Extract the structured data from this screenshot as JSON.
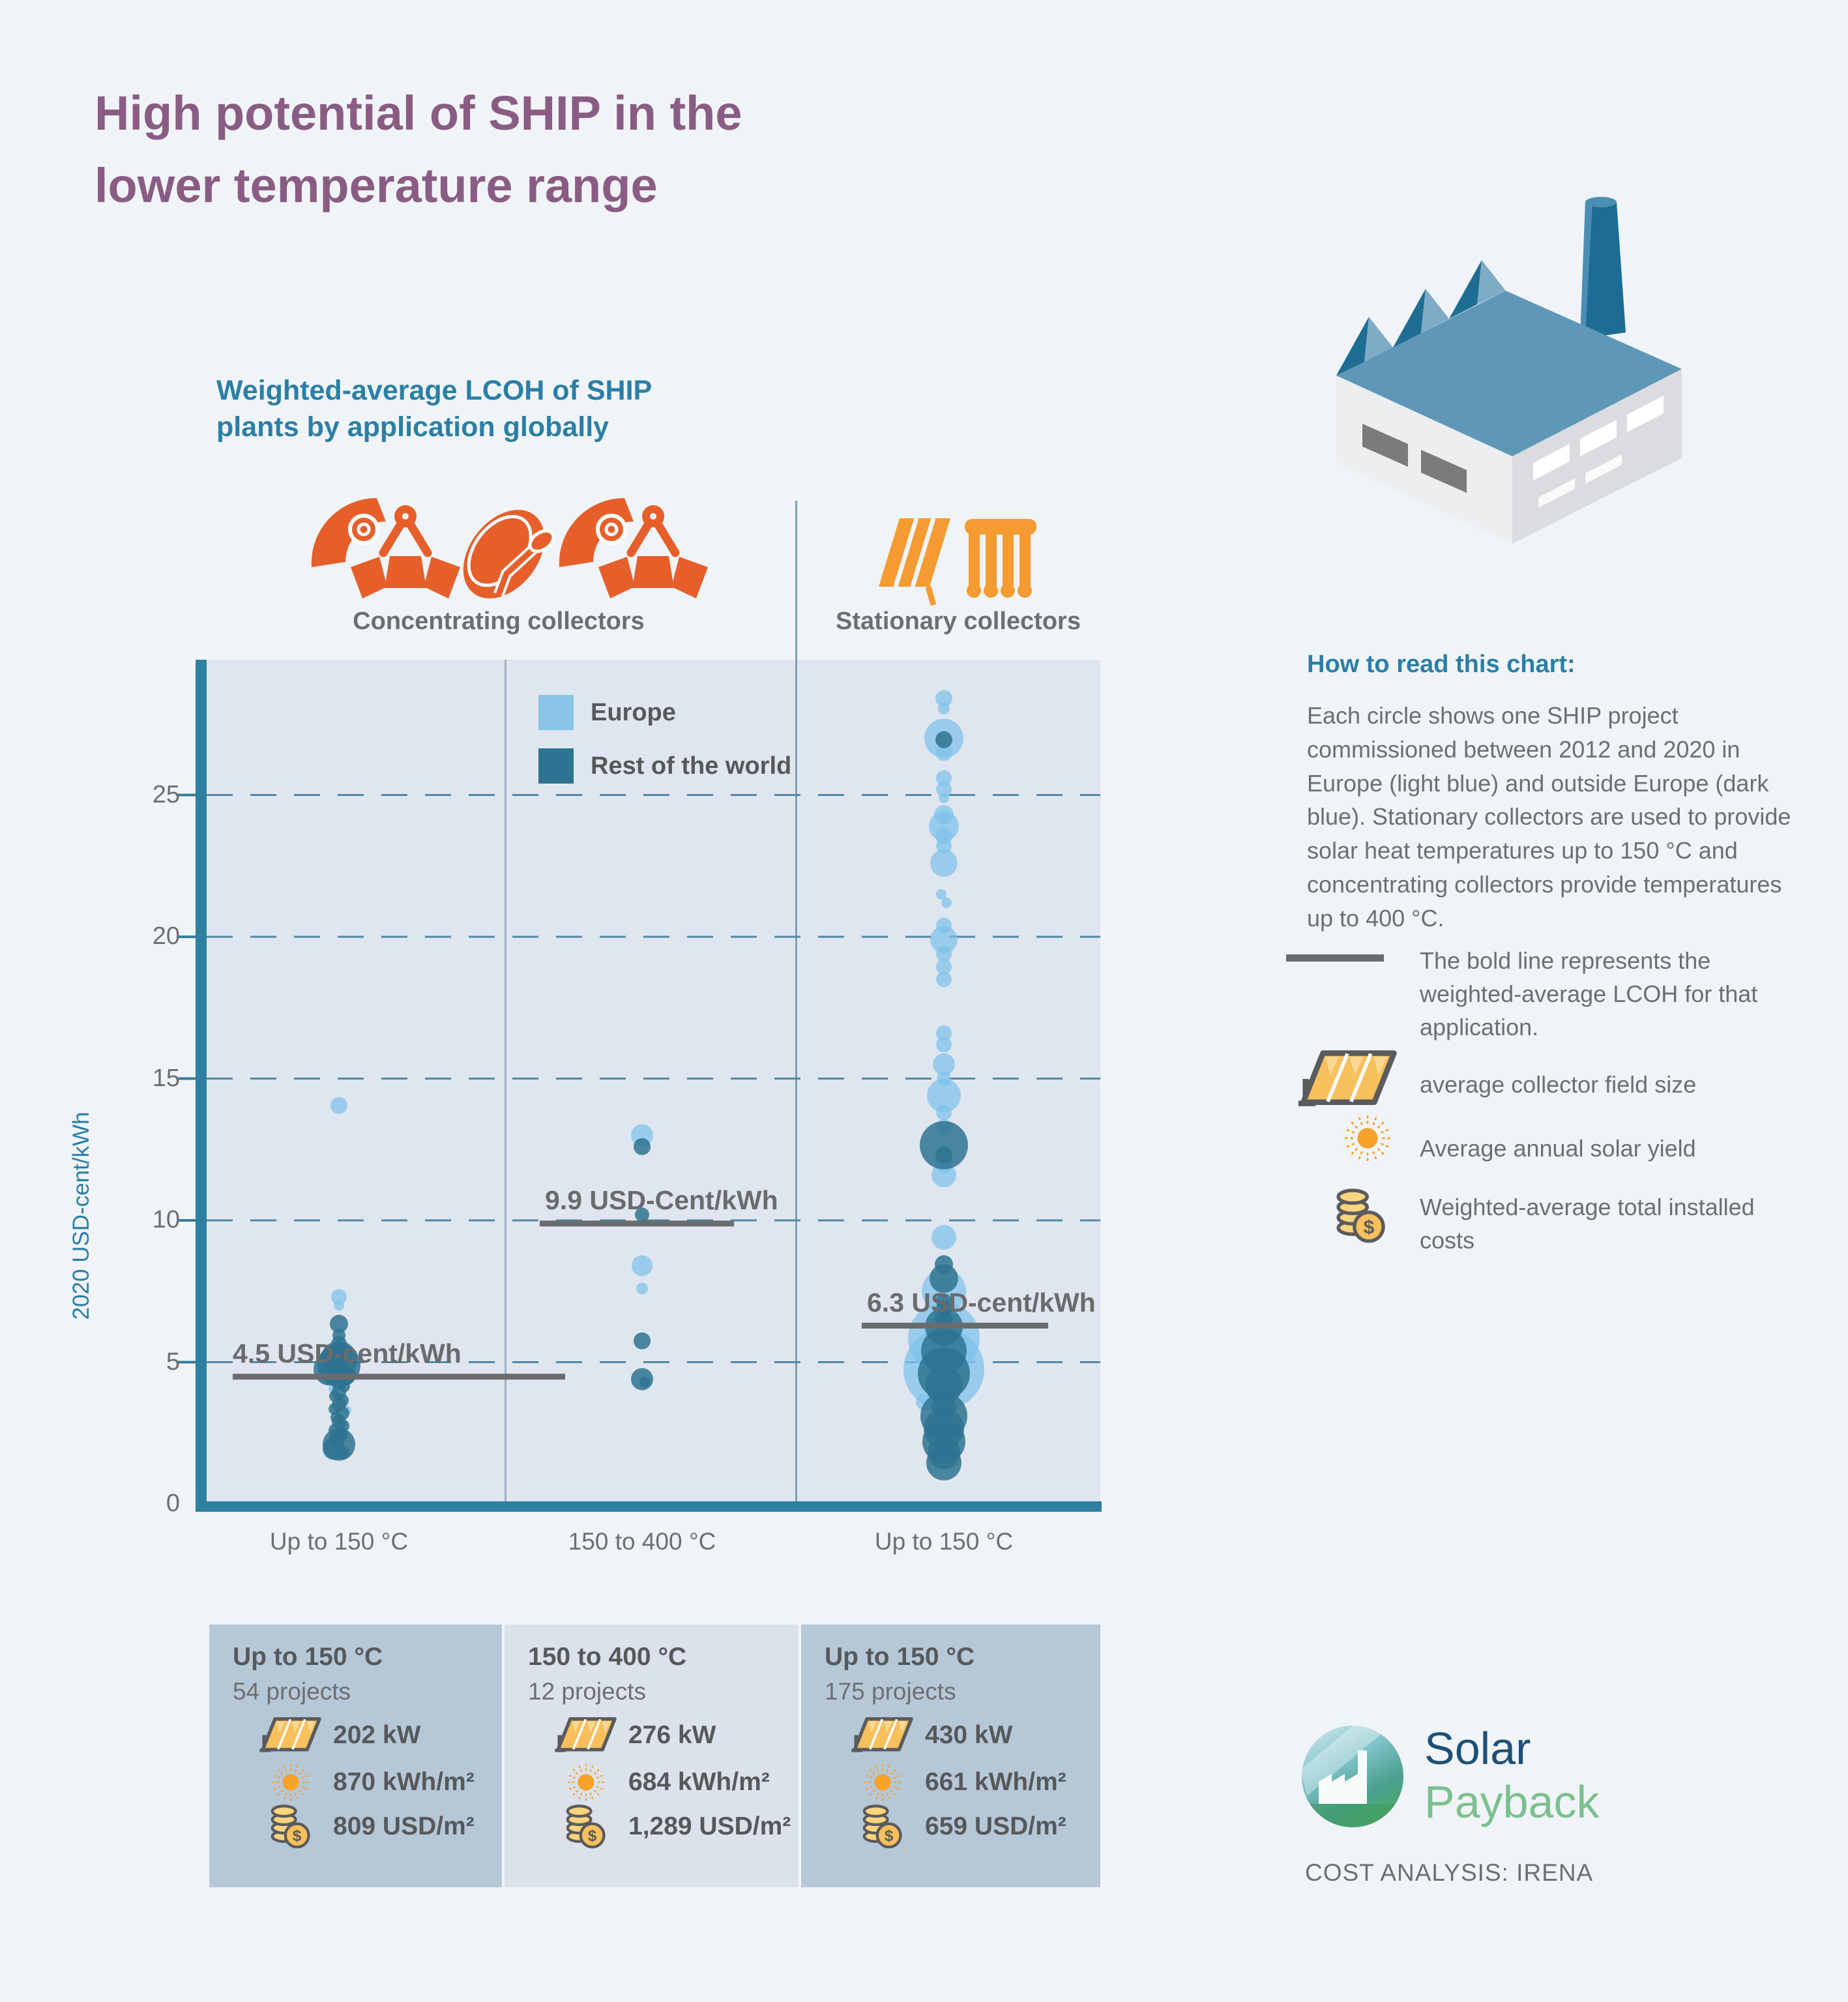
{
  "title": {
    "line1": "High potential of SHIP in the",
    "line2": "lower temperature range"
  },
  "chart": {
    "heading": {
      "line1": "Weighted-average LCOH of SHIP",
      "line2": "plants by application globally"
    },
    "groups": {
      "concentrating": "Concentrating collectors",
      "stationary": "Stationary collectors"
    },
    "y_axis_title": "2020 USD-cent/kWh"
  },
  "chart_data": {
    "type": "bubble",
    "ylabel": "2020 USD-cent/kWh",
    "ylim": [
      0,
      29.8
    ],
    "y_ticks": [
      0,
      5,
      10,
      15,
      20,
      25
    ],
    "grid": "dashed horizontal",
    "legend": [
      {
        "name": "Europe",
        "color": "#7dc2ea",
        "key": "eu"
      },
      {
        "name": "Rest of the world",
        "color": "#2e7391",
        "key": "row"
      }
    ],
    "columns": [
      {
        "x_label": "Up to 150 °C",
        "collector_group": "Concentrating collectors",
        "avg_value": 4.5,
        "avg_label": "4.5 USD-cent/kWh",
        "points": [
          [
            14.05,
            13,
            "eu"
          ],
          [
            7.3,
            12,
            "eu"
          ],
          [
            7.0,
            8,
            "eu"
          ],
          [
            6.35,
            14,
            "row"
          ],
          [
            5.95,
            10,
            "row"
          ],
          [
            5.65,
            12,
            "row"
          ],
          [
            5.35,
            15,
            "row"
          ],
          [
            5.1,
            28,
            "row"
          ],
          [
            4.9,
            33,
            "row"
          ],
          [
            4.75,
            25,
            "row",
            -14
          ],
          [
            4.55,
            16,
            "row",
            10
          ],
          [
            4.45,
            10,
            "eu",
            -20
          ],
          [
            4.3,
            12,
            "row"
          ],
          [
            4.15,
            9,
            "row",
            8
          ],
          [
            4.05,
            8,
            "eu",
            -8
          ],
          [
            3.95,
            11,
            "row"
          ],
          [
            3.8,
            9,
            "row",
            -6
          ],
          [
            3.65,
            10,
            "row",
            5
          ],
          [
            3.5,
            11,
            "row"
          ],
          [
            3.35,
            9,
            "row",
            -7
          ],
          [
            3.3,
            7,
            "eu",
            12
          ],
          [
            3.2,
            10,
            "row",
            6
          ],
          [
            3.05,
            9,
            "row",
            -4
          ],
          [
            2.9,
            11,
            "row"
          ],
          [
            2.75,
            10,
            "row",
            6
          ],
          [
            2.6,
            10,
            "row",
            -6
          ],
          [
            2.45,
            11,
            "row",
            3
          ],
          [
            2.3,
            12,
            "row",
            -3
          ],
          [
            2.1,
            25,
            "row"
          ],
          [
            1.95,
            17,
            "row",
            -8
          ],
          [
            1.8,
            10,
            "row",
            6
          ]
        ]
      },
      {
        "x_label": "150 to 400 °C",
        "collector_group": "Concentrating collectors",
        "avg_value": 9.9,
        "avg_label": "9.9 USD-Cent/kWh",
        "points": [
          [
            13.0,
            17,
            "eu"
          ],
          [
            12.6,
            13,
            "row"
          ],
          [
            10.2,
            11,
            "row"
          ],
          [
            8.4,
            16,
            "eu"
          ],
          [
            7.6,
            9,
            "eu"
          ],
          [
            5.75,
            13,
            "row"
          ],
          [
            4.4,
            17,
            "row"
          ],
          [
            4.3,
            8,
            "row",
            4
          ]
        ]
      },
      {
        "x_label": "Up to 150 °C",
        "collector_group": "Stationary collectors",
        "avg_value": 6.3,
        "avg_label": "6.3 USD-cent/kWh",
        "points": [
          [
            28.4,
            13,
            "eu"
          ],
          [
            28.05,
            9,
            "eu"
          ],
          [
            27.0,
            30,
            "eu"
          ],
          [
            26.95,
            13,
            "row"
          ],
          [
            26.5,
            13,
            "eu"
          ],
          [
            25.6,
            12,
            "eu"
          ],
          [
            25.2,
            12,
            "eu"
          ],
          [
            24.9,
            8,
            "eu"
          ],
          [
            24.3,
            15,
            "eu"
          ],
          [
            23.9,
            23,
            "eu"
          ],
          [
            23.55,
            13,
            "eu"
          ],
          [
            23.2,
            12,
            "eu"
          ],
          [
            22.6,
            21,
            "eu"
          ],
          [
            21.5,
            8,
            "eu",
            -4
          ],
          [
            21.2,
            8,
            "eu",
            4
          ],
          [
            20.4,
            12,
            "eu"
          ],
          [
            19.9,
            21,
            "eu"
          ],
          [
            19.4,
            12,
            "eu"
          ],
          [
            18.95,
            12,
            "eu"
          ],
          [
            18.5,
            12,
            "eu"
          ],
          [
            16.6,
            12,
            "eu"
          ],
          [
            16.2,
            12,
            "eu"
          ],
          [
            15.5,
            17,
            "eu"
          ],
          [
            15.0,
            11,
            "eu"
          ],
          [
            14.4,
            26,
            "eu"
          ],
          [
            13.8,
            12,
            "eu"
          ],
          [
            13.3,
            12,
            "eu"
          ],
          [
            12.65,
            37,
            "row"
          ],
          [
            12.3,
            13,
            "row"
          ],
          [
            11.95,
            13,
            "eu"
          ],
          [
            11.6,
            19,
            "eu"
          ],
          [
            9.4,
            19,
            "eu"
          ],
          [
            8.45,
            14,
            "row"
          ],
          [
            7.95,
            22,
            "row"
          ],
          [
            7.5,
            34,
            "eu"
          ],
          [
            7.15,
            12,
            "row"
          ],
          [
            6.9,
            12,
            "row"
          ],
          [
            6.5,
            14,
            "row"
          ],
          [
            6.25,
            29,
            "row"
          ],
          [
            5.85,
            55,
            "eu"
          ],
          [
            5.4,
            35,
            "row"
          ],
          [
            4.75,
            62,
            "eu"
          ],
          [
            4.6,
            40,
            "row"
          ],
          [
            4.2,
            29,
            "row"
          ],
          [
            3.85,
            14,
            "row"
          ],
          [
            3.6,
            13,
            "eu",
            -30
          ],
          [
            3.4,
            19,
            "row"
          ],
          [
            3.1,
            36,
            "row"
          ],
          [
            2.65,
            31,
            "row"
          ],
          [
            2.2,
            33,
            "row"
          ],
          [
            1.8,
            25,
            "row"
          ],
          [
            1.45,
            27,
            "row"
          ]
        ]
      }
    ]
  },
  "how_to_read": {
    "heading": "How to read this chart:",
    "paragraph": "Each circle shows one SHIP project commissioned between 2012 and 2020 in Europe (light blue) and outside Europe (dark blue). Stationary collectors are used to provide solar heat temperatures up to 150 °C and concentrating collectors provide temperatures up to 400 °C.",
    "bold_line_note": "The bold line represents the weighted-average LCOH for that application.",
    "collector_note": "average collector field size",
    "sun_note": "Average annual solar yield",
    "coins_note": "Weighted-average total installed costs"
  },
  "cards": [
    {
      "temp": "Up to 150 °C",
      "projects": "54 projects",
      "field_size": "202 kW",
      "solar_yield": "870 kWh/m²",
      "installed_cost": "809 USD/m²"
    },
    {
      "temp": "150 to 400 °C",
      "projects": "12 projects",
      "field_size": "276 kW",
      "solar_yield": "684 kWh/m²",
      "installed_cost": "1,289 USD/m²"
    },
    {
      "temp": "Up to 150 °C",
      "projects": "175 projects",
      "field_size": "430 kW",
      "solar_yield": "661 kWh/m²",
      "installed_cost": "659 USD/m²"
    }
  ],
  "logo": {
    "line1": "Solar",
    "line2": "Payback"
  },
  "credit": "COST ANALYSIS: IRENA",
  "colors": {
    "page_bg": "#f0f4f8",
    "plot_bg": "#e0e6ef",
    "title_purple": "#8a5c84",
    "heading_teal": "#2a7fa6",
    "axis_teal": "#2f7fa0",
    "gridline": "#4e88a6",
    "europe_blue": "#7dc2ea",
    "rest_of_world_blue": "#2e7391",
    "avg_line_gray": "#6a6b6d",
    "text_gray": "#6d6e71",
    "concentrating_orange": "#e65f2b",
    "stationary_orange": "#f59b31",
    "card_bg_dark": "#b6c8d8",
    "card_bg_light": "#dbe2ec",
    "icon_yellow": "#f8c05c",
    "sun_orange": "#f7a229",
    "logo_navy": "#1d5078",
    "logo_green": "#7cc08d"
  }
}
